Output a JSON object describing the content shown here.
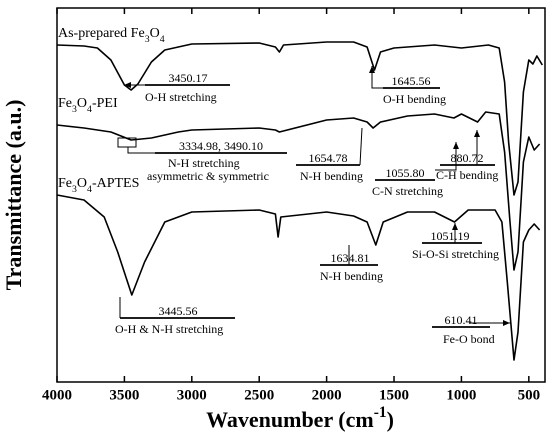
{
  "chart_data": {
    "type": "line",
    "xlabel": "Wavenumber (cm-1)",
    "ylabel": "Transmittance (a.u.)",
    "xlim": [
      4000,
      380
    ],
    "ylim": [
      0,
      374
    ],
    "xticks": [
      4000,
      3500,
      3000,
      2500,
      2000,
      1500,
      1000,
      500
    ],
    "series": [
      {
        "name": "As-prepared Fe3O4",
        "color": "#000000",
        "x": [
          4000,
          3800,
          3700,
          3600,
          3500,
          3450,
          3400,
          3300,
          3200,
          3000,
          2500,
          2380,
          2350,
          2320,
          2000,
          1800,
          1700,
          1645,
          1600,
          1500,
          1200,
          1000,
          800,
          720,
          680,
          650,
          610,
          580,
          540,
          500,
          470,
          440,
          400
        ],
        "values": [
          337,
          336,
          334,
          322,
          297,
          292,
          298,
          320,
          332,
          338,
          339,
          335,
          330,
          337,
          340,
          340,
          335,
          312,
          330,
          334,
          337,
          334,
          337,
          334,
          300,
          240,
          187,
          200,
          290,
          322,
          318,
          326,
          317
        ]
      },
      {
        "name": "Fe3O4-PEI",
        "color": "#000000",
        "x": [
          4000,
          3800,
          3600,
          3450,
          3300,
          3100,
          3000,
          2500,
          2380,
          2350,
          2000,
          1800,
          1700,
          1655,
          1600,
          1400,
          1200,
          1056,
          1000,
          880,
          820,
          720,
          680,
          640,
          610,
          580,
          540,
          500,
          460,
          420
        ],
        "values": [
          257,
          254,
          250,
          242,
          244,
          250,
          252,
          254,
          252,
          250,
          262,
          264,
          260,
          254,
          260,
          266,
          268,
          264,
          268,
          260,
          270,
          268,
          230,
          160,
          112,
          130,
          220,
          245,
          232,
          238
        ]
      },
      {
        "name": "Fe3O4-APTES",
        "color": "#000000",
        "x": [
          4000,
          3800,
          3650,
          3550,
          3445,
          3350,
          3200,
          3000,
          2500,
          2380,
          2360,
          2340,
          2000,
          1800,
          1700,
          1635,
          1580,
          1400,
          1200,
          1051,
          950,
          750,
          700,
          660,
          610,
          580,
          540,
          500,
          460,
          420
        ],
        "values": [
          187,
          182,
          165,
          130,
          87,
          120,
          160,
          170,
          172,
          168,
          145,
          165,
          170,
          166,
          160,
          137,
          160,
          170,
          170,
          160,
          172,
          172,
          160,
          100,
          22,
          50,
          140,
          152,
          158,
          152
        ]
      }
    ],
    "annotations": [
      {
        "number": "3450.17",
        "text": [
          "O-H stretching"
        ]
      },
      {
        "number": "1645.56",
        "text": [
          "O-H bending"
        ]
      },
      {
        "number": "3334.98, 3490.10",
        "text": [
          "N-H stretching",
          "asymmetric & symmetric"
        ]
      },
      {
        "number": "1654.78",
        "text": [
          "N-H bending"
        ]
      },
      {
        "number": "1055.80",
        "text": [
          "C-N stretching"
        ]
      },
      {
        "number": "880.72",
        "text": [
          "C-H bending"
        ]
      },
      {
        "number": "3445.56",
        "text": [
          "O-H & N-H stretching"
        ]
      },
      {
        "number": "1634.81",
        "text": [
          "N-H bending"
        ]
      },
      {
        "number": "1051.19",
        "text": [
          "Si-O-Si stretching"
        ]
      },
      {
        "number": "610.41",
        "text": [
          "Fe-O bond"
        ]
      }
    ]
  }
}
